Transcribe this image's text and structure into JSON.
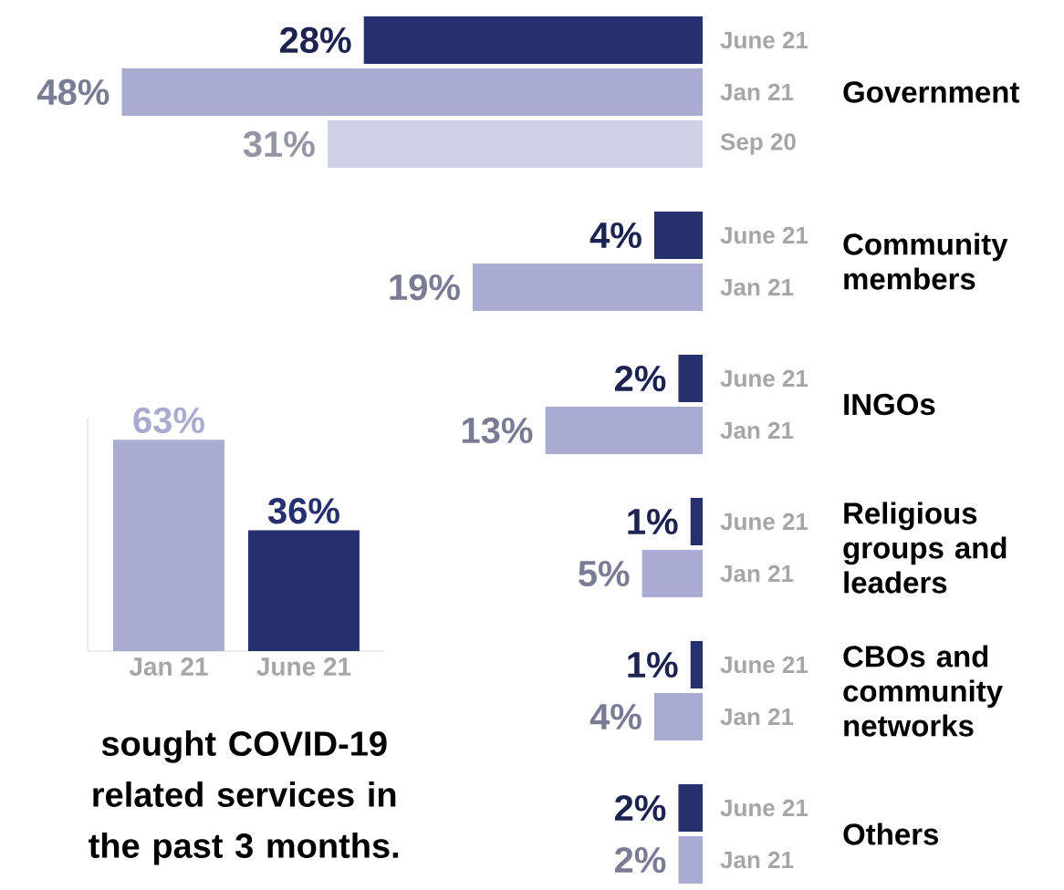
{
  "chart_data": [
    {
      "type": "bar",
      "categories": [
        "Jan 21",
        "June 21"
      ],
      "values": [
        63,
        36
      ],
      "colors": [
        "#a9acd0",
        "#27306f"
      ],
      "value_labels": [
        "63%",
        "36%"
      ],
      "annotations": [
        "sought COVID-19 related services in the past 3 months."
      ]
    },
    {
      "type": "bar",
      "orientation": "horizontal",
      "categories": [
        "Government",
        "Community members",
        "INGOs",
        "Religious groups and leaders",
        "CBOs and community networks",
        "Others"
      ],
      "series": [
        {
          "name": "June 21",
          "color": "#27306f",
          "values": [
            28,
            4,
            2,
            1,
            1,
            2
          ],
          "value_labels": [
            "28%",
            "4%",
            "2%",
            "1%",
            "1%",
            "2%"
          ]
        },
        {
          "name": "Jan 21",
          "color": "#a9acd0",
          "values": [
            48,
            19,
            13,
            5,
            4,
            2
          ],
          "value_labels": [
            "48%",
            "19%",
            "13%",
            "5%",
            "4%",
            "2%"
          ]
        },
        {
          "name": "Sep 20",
          "color": "#cfd1e6",
          "values": [
            31,
            null,
            null,
            null,
            null,
            null
          ],
          "value_labels": [
            "31%",
            null,
            null,
            null,
            null,
            null
          ]
        }
      ]
    }
  ]
}
